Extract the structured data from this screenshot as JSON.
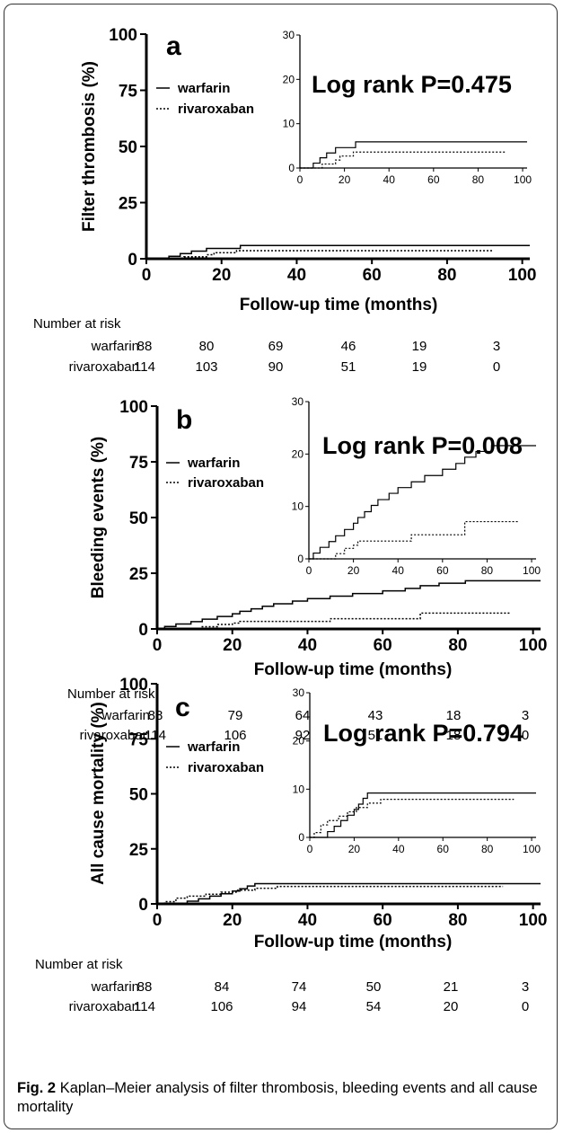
{
  "caption": {
    "label": "Fig. 2",
    "text": "Kaplan–Meier analysis of filter thrombosis, bleeding events and all cause mortality"
  },
  "colors": {
    "line": "#000000",
    "panel_border": "#333333"
  },
  "chart_data": [
    {
      "type": "line",
      "panel_letter": "a",
      "ylabel": "Filter thrombosis (%)",
      "xlabel": "Follow-up time (months)",
      "xlim": [
        0,
        102
      ],
      "ylim": [
        0,
        100
      ],
      "xticks": [
        0,
        20,
        40,
        60,
        80,
        100
      ],
      "yticks": [
        0,
        25,
        50,
        75,
        100
      ],
      "legend": [
        "warfarin",
        "rivaroxaban"
      ],
      "annotation": "Log rank P=0.475",
      "series": [
        {
          "name": "warfarin",
          "style": "solid",
          "x": [
            0,
            5,
            6,
            9,
            12,
            16,
            25,
            102
          ],
          "y": [
            0,
            0,
            1.1,
            2.3,
            3.4,
            4.6,
            5.9,
            5.9
          ]
        },
        {
          "name": "rivaroxaban",
          "style": "dotted",
          "x": [
            0,
            6,
            10,
            16,
            18,
            24,
            92
          ],
          "y": [
            0,
            0,
            0.9,
            1.8,
            2.7,
            3.6,
            3.6
          ]
        }
      ],
      "inset": {
        "xlim": [
          0,
          102
        ],
        "ylim": [
          0,
          30
        ],
        "xticks": [
          0,
          20,
          40,
          60,
          80,
          100
        ],
        "yticks": [
          0,
          10,
          20,
          30
        ]
      },
      "risk_table": {
        "title": "Number at risk",
        "rows": [
          {
            "label": "warfarin",
            "values": [
              "88",
              "80",
              "69",
              "46",
              "19",
              "3"
            ]
          },
          {
            "label": "rivaroxaban",
            "values": [
              "114",
              "103",
              "90",
              "51",
              "19",
              "0"
            ]
          }
        ]
      }
    },
    {
      "type": "line",
      "panel_letter": "b",
      "ylabel": "Bleeding events (%)",
      "xlabel": "Follow-up time (months)",
      "xlim": [
        0,
        102
      ],
      "ylim": [
        0,
        100
      ],
      "xticks": [
        0,
        20,
        40,
        60,
        80,
        100
      ],
      "yticks": [
        0,
        25,
        50,
        75,
        100
      ],
      "legend": [
        "warfarin",
        "rivaroxaban"
      ],
      "annotation": "Log rank P=0.008",
      "series": [
        {
          "name": "warfarin",
          "style": "solid",
          "x": [
            0,
            2,
            5,
            9,
            12,
            16,
            20,
            22,
            25,
            28,
            31,
            36,
            40,
            46,
            52,
            60,
            66,
            70,
            75,
            82,
            102
          ],
          "y": [
            0,
            1.1,
            2.2,
            3.3,
            4.4,
            5.6,
            6.8,
            7.9,
            9,
            10.2,
            11.3,
            12.5,
            13.6,
            14.7,
            15.9,
            17.1,
            18.2,
            19.4,
            20.5,
            21.6,
            21.6
          ]
        },
        {
          "name": "rivaroxaban",
          "style": "dotted",
          "x": [
            0,
            12,
            16,
            20,
            22,
            28,
            46,
            70,
            94
          ],
          "y": [
            0,
            1,
            2,
            2.6,
            3.4,
            3.4,
            4.6,
            7.1,
            7.1
          ]
        }
      ],
      "inset": {
        "xlim": [
          0,
          102
        ],
        "ylim": [
          0,
          30
        ],
        "xticks": [
          0,
          20,
          40,
          60,
          80,
          100
        ],
        "yticks": [
          0,
          10,
          20,
          30
        ]
      },
      "risk_table": {
        "title": "Number at risk",
        "rows": [
          {
            "label": "warfarin",
            "values": [
              "88",
              "79",
              "64",
              "43",
              "18",
              "3"
            ]
          },
          {
            "label": "rivaroxaban",
            "values": [
              "114",
              "106",
              "92",
              "51",
              "18",
              "0"
            ]
          }
        ]
      }
    },
    {
      "type": "line",
      "panel_letter": "c",
      "ylabel": "All cause mortality (%)",
      "xlabel": "Follow-up time (months)",
      "xlim": [
        0,
        102
      ],
      "ylim": [
        0,
        100
      ],
      "xticks": [
        0,
        20,
        40,
        60,
        80,
        100
      ],
      "yticks": [
        0,
        25,
        50,
        75,
        100
      ],
      "legend": [
        "warfarin",
        "rivaroxaban"
      ],
      "annotation": "Log rank P=0.794",
      "series": [
        {
          "name": "warfarin",
          "style": "solid",
          "x": [
            0,
            8,
            11,
            14,
            17,
            20,
            22,
            24,
            26,
            102
          ],
          "y": [
            0,
            1.2,
            2.3,
            3.5,
            4.6,
            5.8,
            6.9,
            8.1,
            9.2,
            9.2
          ]
        },
        {
          "name": "rivaroxaban",
          "style": "dotted",
          "x": [
            0,
            2,
            5,
            8,
            13,
            17,
            21,
            26,
            32,
            92
          ],
          "y": [
            0,
            1,
            2.6,
            3.5,
            4.4,
            5.3,
            6.2,
            7.1,
            7.9,
            7.9
          ]
        }
      ],
      "inset": {
        "xlim": [
          0,
          102
        ],
        "ylim": [
          0,
          30
        ],
        "xticks": [
          0,
          20,
          40,
          60,
          80,
          100
        ],
        "yticks": [
          0,
          10,
          20,
          30
        ]
      },
      "risk_table": {
        "title": "Number at risk",
        "rows": [
          {
            "label": "warfarin",
            "values": [
              "88",
              "84",
              "74",
              "50",
              "21",
              "3"
            ]
          },
          {
            "label": "rivaroxaban",
            "values": [
              "114",
              "106",
              "94",
              "54",
              "20",
              "0"
            ]
          }
        ]
      }
    }
  ]
}
